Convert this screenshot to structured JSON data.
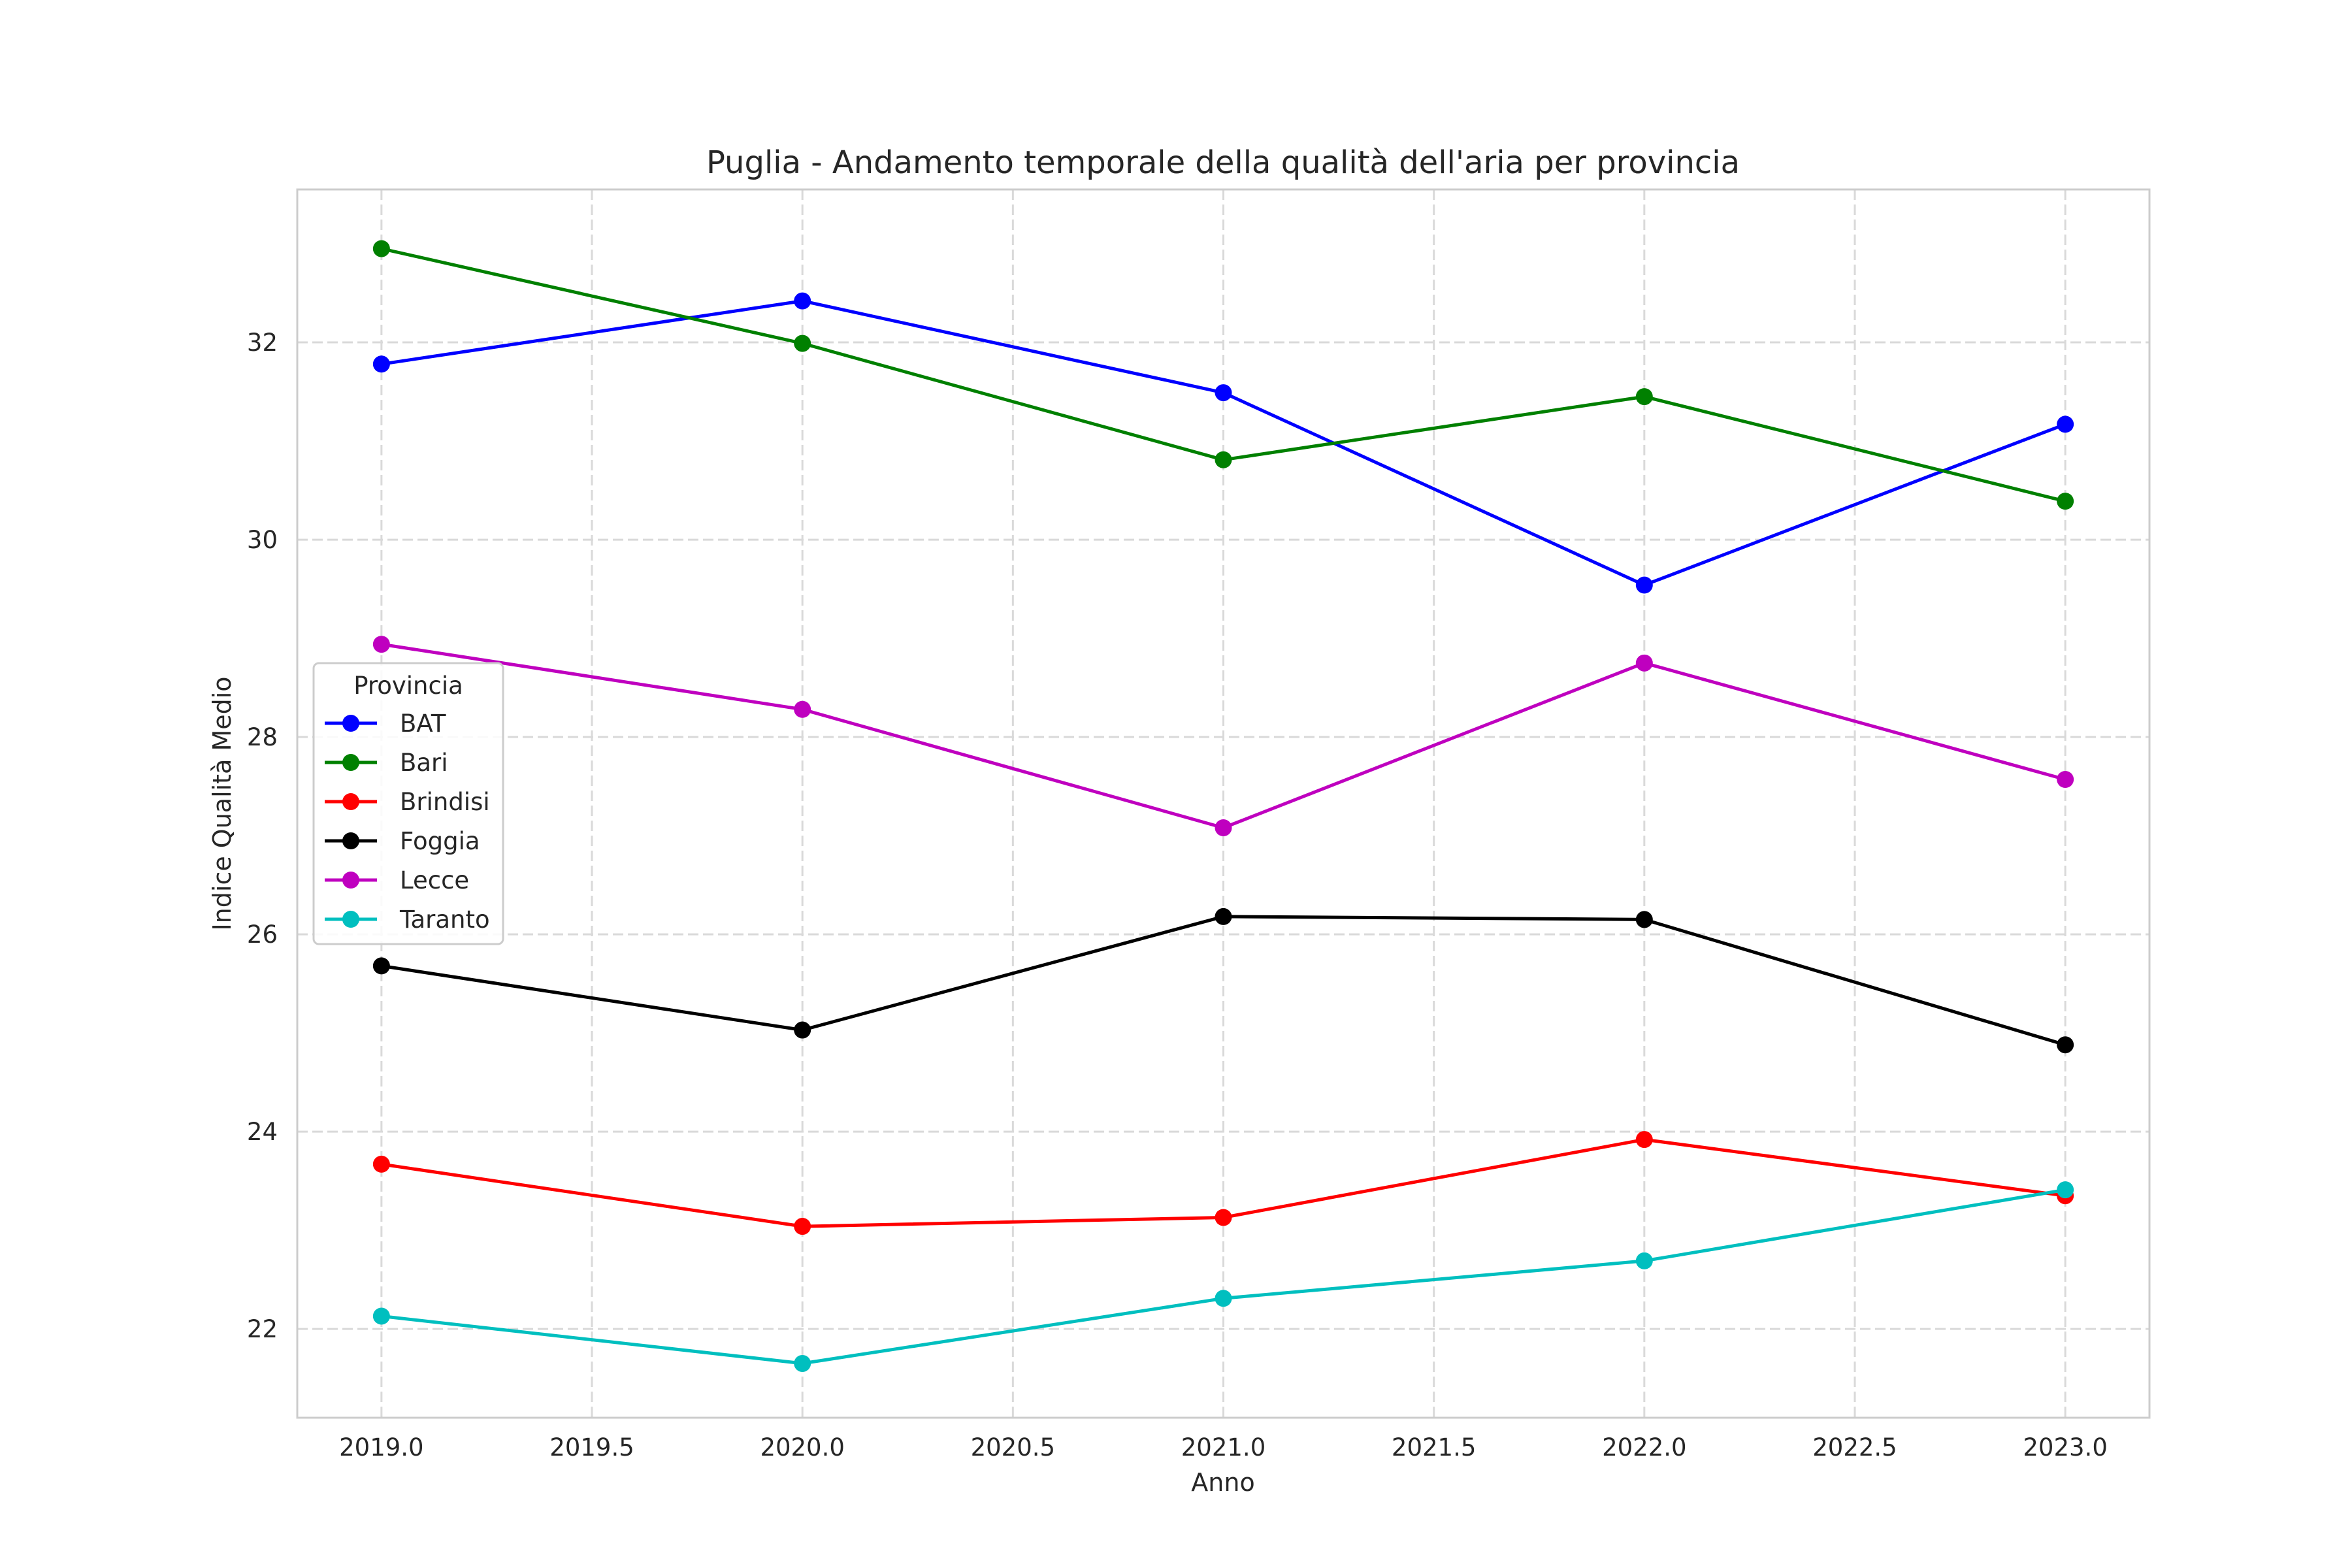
{
  "chart_data": {
    "type": "line",
    "title": "Puglia - Andamento temporale della qualità dell'aria per provincia",
    "xlabel": "Anno",
    "ylabel": "Indice Qualità Medio",
    "x": [
      2019,
      2020,
      2021,
      2022,
      2023
    ],
    "xlim": [
      2018.8,
      2023.2
    ],
    "ylim": [
      21.1,
      33.55
    ],
    "xticks": [
      2019.0,
      2019.5,
      2020.0,
      2020.5,
      2021.0,
      2021.5,
      2022.0,
      2022.5,
      2023.0
    ],
    "xtick_labels": [
      "2019.0",
      "2019.5",
      "2020.0",
      "2020.5",
      "2021.0",
      "2021.5",
      "2022.0",
      "2022.5",
      "2023.0"
    ],
    "yticks": [
      22,
      24,
      26,
      28,
      30,
      32
    ],
    "ytick_labels": [
      "22",
      "24",
      "26",
      "28",
      "30",
      "32"
    ],
    "grid": true,
    "legend": {
      "title": "Provincia",
      "placement": "center-left"
    },
    "series": [
      {
        "name": "BAT",
        "color": "#0000ff",
        "values": [
          31.78,
          32.42,
          31.49,
          29.54,
          31.17
        ]
      },
      {
        "name": "Bari",
        "color": "#008000",
        "values": [
          32.95,
          31.99,
          30.81,
          31.45,
          30.39
        ]
      },
      {
        "name": "Brindisi",
        "color": "#ff0000",
        "values": [
          23.67,
          23.04,
          23.13,
          23.92,
          23.35
        ]
      },
      {
        "name": "Foggia",
        "color": "#000000",
        "values": [
          25.68,
          25.03,
          26.18,
          26.15,
          24.88
        ]
      },
      {
        "name": "Lecce",
        "color": "#bf00bf",
        "values": [
          28.94,
          28.28,
          27.08,
          28.75,
          27.57
        ]
      },
      {
        "name": "Taranto",
        "color": "#00bfbf",
        "values": [
          22.13,
          21.65,
          22.31,
          22.69,
          23.41
        ]
      }
    ]
  }
}
